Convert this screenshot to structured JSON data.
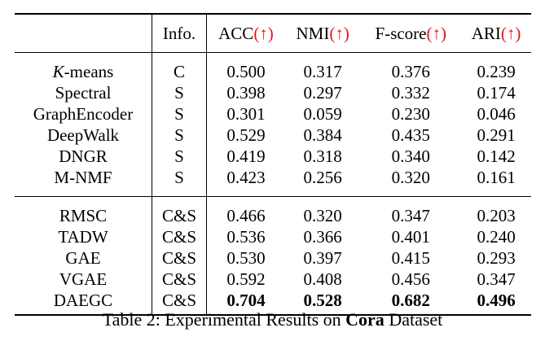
{
  "table": {
    "header": {
      "method": "",
      "info": "Info.",
      "metrics": [
        {
          "name": "ACC",
          "arrow": "(↑)"
        },
        {
          "name": "NMI",
          "arrow": "(↑)"
        },
        {
          "name": "F-score",
          "arrow": "(↑)"
        },
        {
          "name": "ARI",
          "arrow": "(↑)"
        }
      ]
    },
    "group1": [
      {
        "method_italic": "K",
        "method": "-means",
        "info": "C",
        "values": [
          "0.500",
          "0.317",
          "0.376",
          "0.239"
        ]
      },
      {
        "method": "Spectral",
        "info": "S",
        "values": [
          "0.398",
          "0.297",
          "0.332",
          "0.174"
        ]
      },
      {
        "method": "GraphEncoder",
        "info": "S",
        "values": [
          "0.301",
          "0.059",
          "0.230",
          "0.046"
        ]
      },
      {
        "method": "DeepWalk",
        "info": "S",
        "values": [
          "0.529",
          "0.384",
          "0.435",
          "0.291"
        ]
      },
      {
        "method": "DNGR",
        "info": "S",
        "values": [
          "0.419",
          "0.318",
          "0.340",
          "0.142"
        ]
      },
      {
        "method": "M-NMF",
        "info": "S",
        "values": [
          "0.423",
          "0.256",
          "0.320",
          "0.161"
        ]
      }
    ],
    "group2": [
      {
        "method": "RMSC",
        "info": "C&S",
        "values": [
          "0.466",
          "0.320",
          "0.347",
          "0.203"
        ]
      },
      {
        "method": "TADW",
        "info": "C&S",
        "values": [
          "0.536",
          "0.366",
          "0.401",
          "0.240"
        ]
      },
      {
        "method": "GAE",
        "info": "C&S",
        "values": [
          "0.530",
          "0.397",
          "0.415",
          "0.293"
        ]
      },
      {
        "method": "VGAE",
        "info": "C&S",
        "values": [
          "0.592",
          "0.408",
          "0.456",
          "0.347"
        ]
      },
      {
        "method": "DAEGC",
        "info": "C&S",
        "values": [
          "0.704",
          "0.528",
          "0.682",
          "0.496"
        ],
        "bold_values": true
      }
    ]
  },
  "caption": {
    "prefix": "Table 2: Experimental Results on ",
    "dataset": "Cora",
    "suffix": " Dataset"
  },
  "colors": {
    "arrow": "#e8141b",
    "text": "#000000"
  }
}
